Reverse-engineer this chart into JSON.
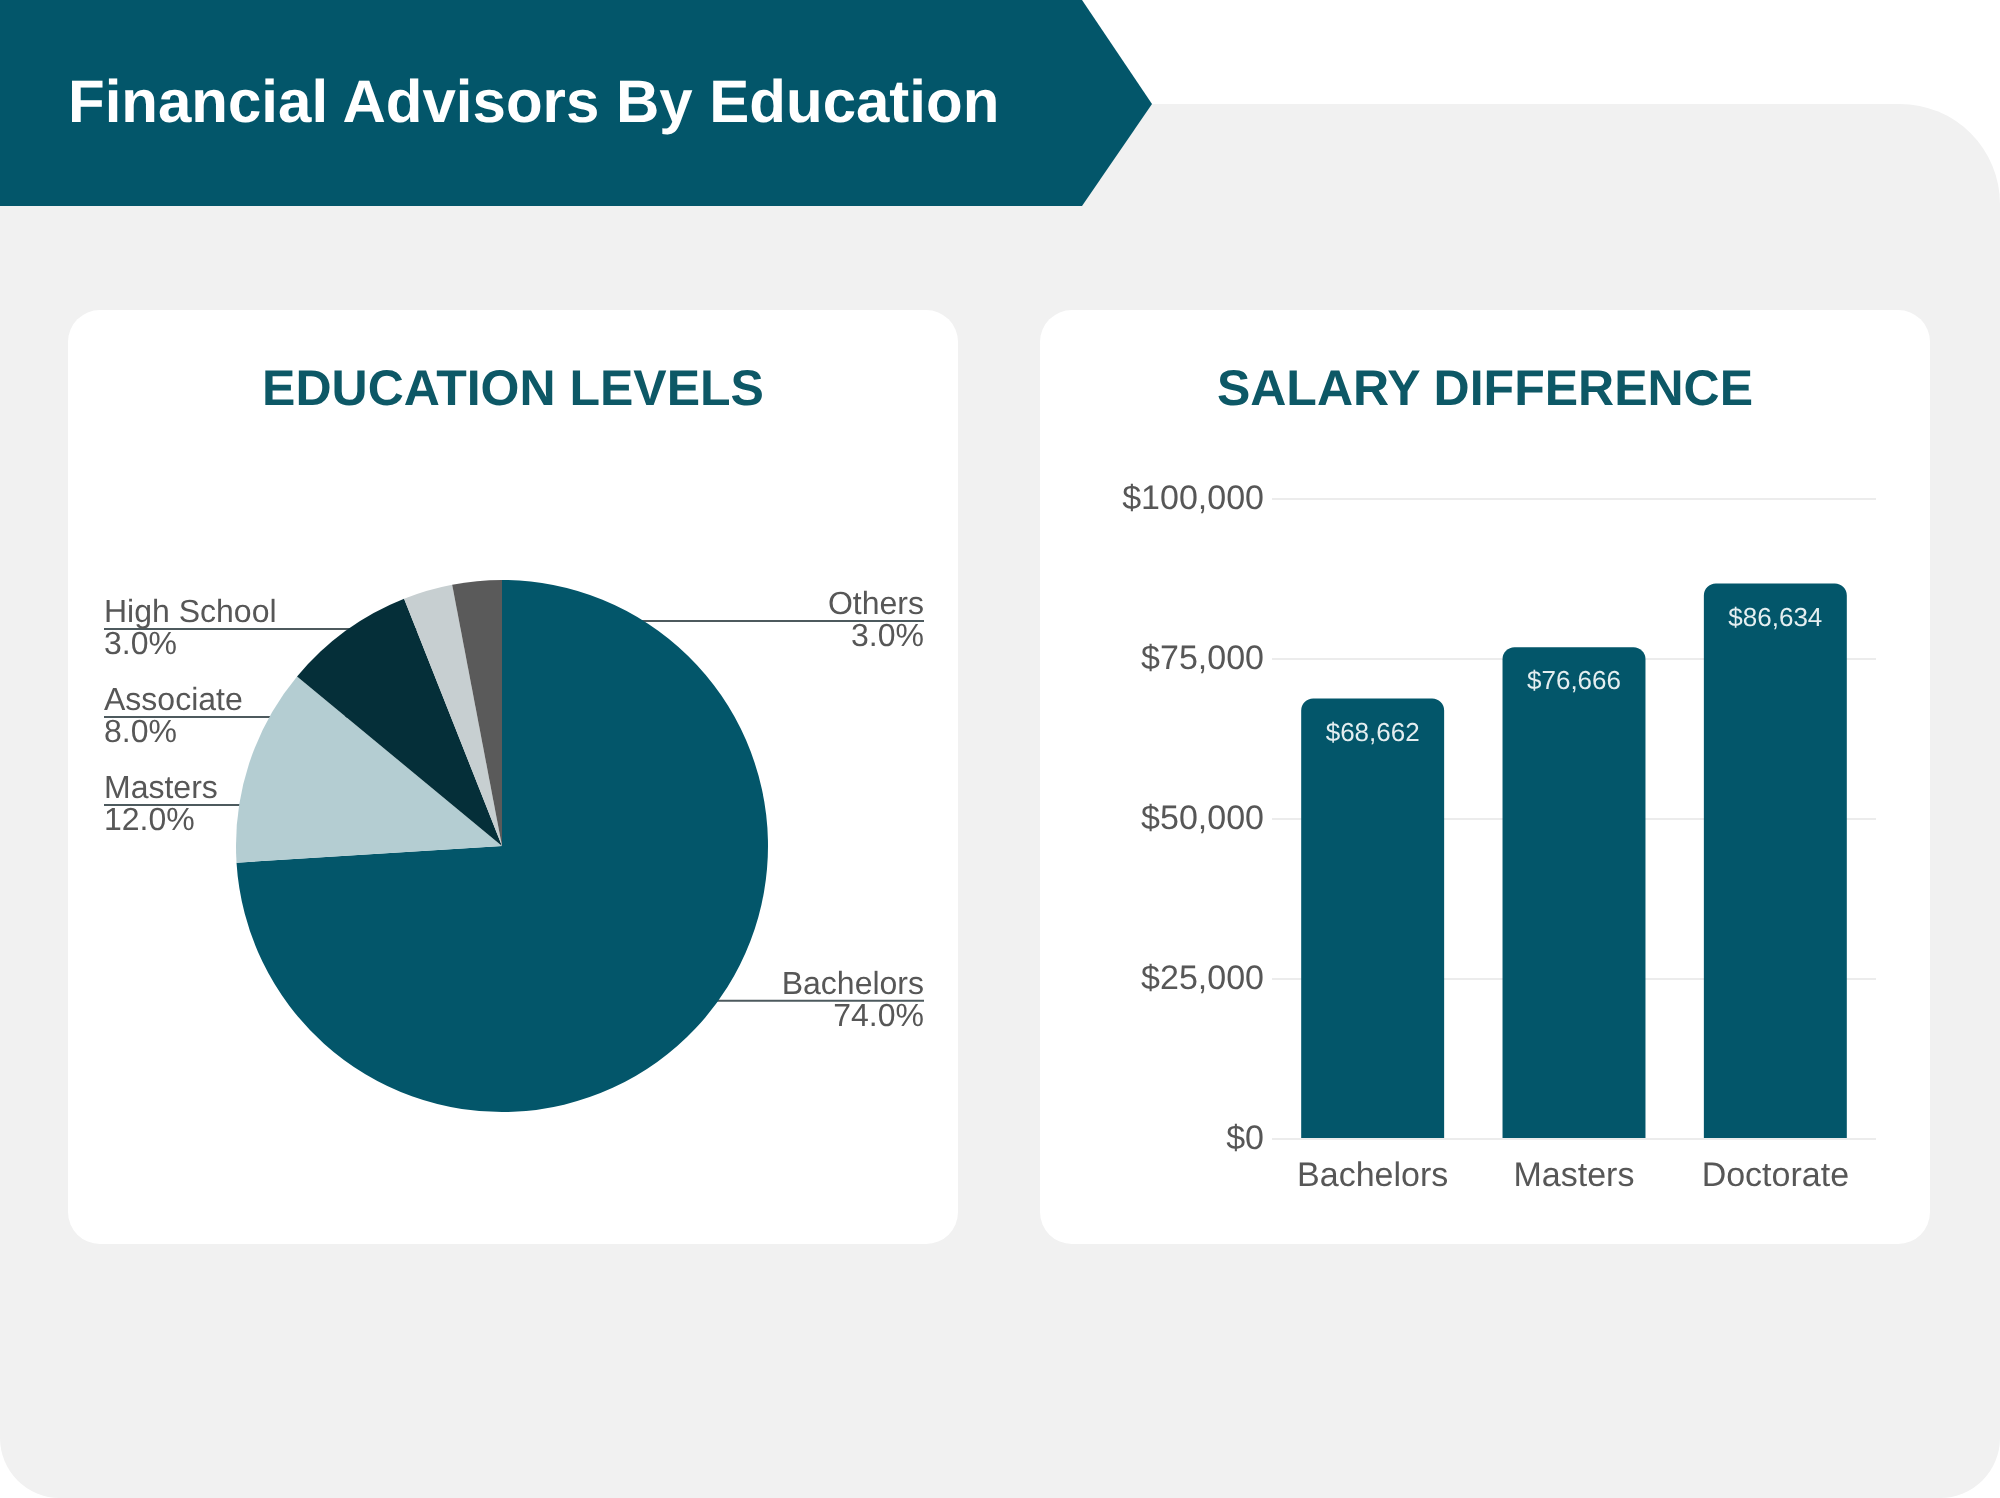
{
  "chart_data": [
    {
      "type": "other",
      "title": "Financial Advisors By Education"
    },
    {
      "type": "pie",
      "title": "EDUCATION LEVELS",
      "categories": [
        "Bachelors",
        "Masters",
        "Associate",
        "High School",
        "Others"
      ],
      "values": [
        74,
        12,
        8,
        3,
        3
      ],
      "colors": [
        "#03566a",
        "#b4cdd2",
        "#052f39",
        "#c7cfd1",
        "#5a5a5a"
      ],
      "value_labels": [
        "74.0%",
        "12.0%",
        "8.0%",
        "3.0%",
        "3.0%"
      ]
    },
    {
      "type": "bar",
      "title": "SALARY DIFFERENCE",
      "categories": [
        "Bachelors",
        "Masters",
        "Doctorate"
      ],
      "values": [
        68662,
        76666,
        86634
      ],
      "color": "#03566a",
      "ylim": [
        0,
        100000
      ],
      "yticks": [
        {
          "value": 0,
          "label": "$0"
        },
        {
          "value": 25000,
          "label": "$25,000"
        },
        {
          "value": 50000,
          "label": "$50,000"
        },
        {
          "value": 75000,
          "label": "$75,000"
        },
        {
          "value": 100000,
          "label": "$100,000"
        }
      ],
      "grid": "y",
      "value_labels": [
        "$68,662",
        "$76,666",
        "$86,634"
      ]
    }
  ]
}
